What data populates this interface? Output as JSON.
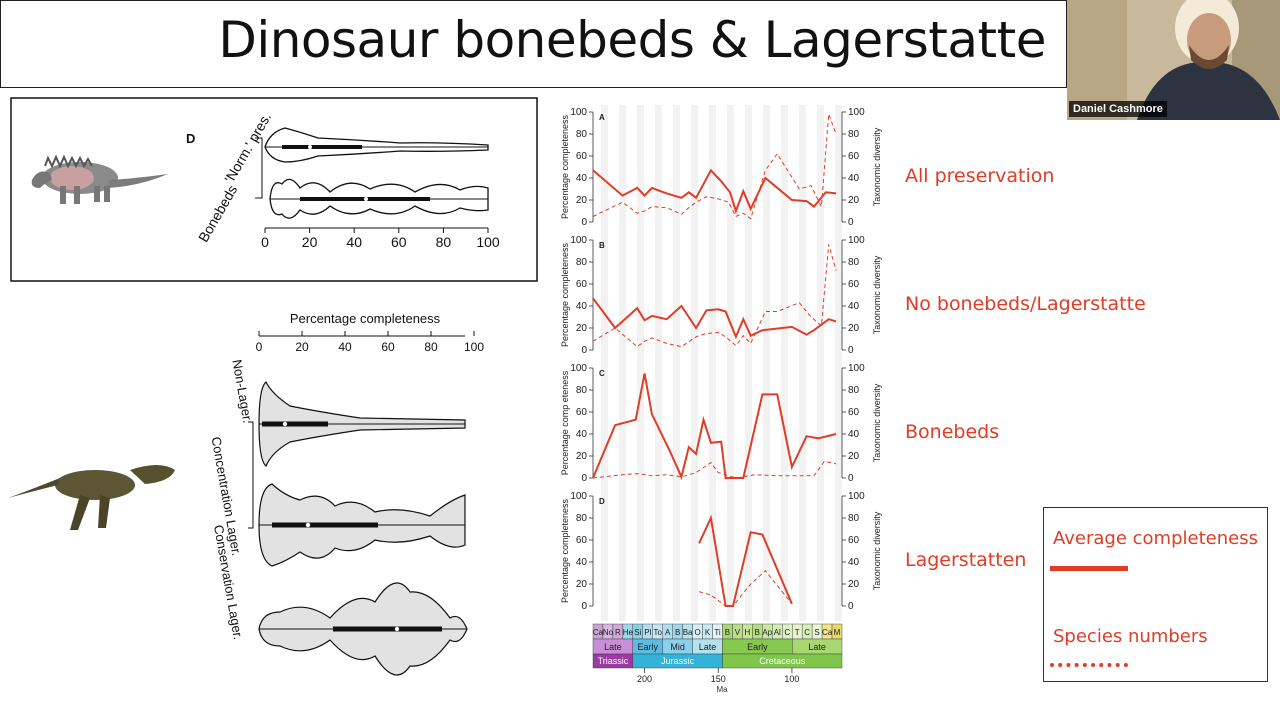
{
  "slide": {
    "title": "Dinosaur bonebeds & Lagerstatte",
    "presenter_name": "Daniel Cashmore"
  },
  "panel_d_inset": {
    "panel_letter": "D",
    "rows": [
      "'Norm.' pres.",
      "Bonebeds"
    ],
    "x_ticks": [
      "0",
      "20",
      "40",
      "60",
      "80",
      "100"
    ]
  },
  "violin_plot": {
    "axis_title": "Percentage completeness",
    "x_ticks": [
      "0",
      "20",
      "40",
      "60",
      "80",
      "100"
    ],
    "rows": [
      "Non-Lager.",
      "Concentration Lager.",
      "Conservation Lager."
    ]
  },
  "timeseries": {
    "left_axis_label": "Percentage completeness",
    "left_axis_label_c": "Percentage comp eteness",
    "right_axis_label": "Taxonomic diversity",
    "y_ticks": [
      "0",
      "20",
      "40",
      "60",
      "80",
      "100"
    ],
    "x_axis_label": "Ma",
    "x_ticks": [
      "200",
      "150",
      "100"
    ],
    "panel_letters": [
      "A",
      "B",
      "C",
      "D"
    ]
  },
  "timescale": {
    "stages": [
      "Ca",
      "No",
      "R",
      "He",
      "Si",
      "Pl",
      "To",
      "A",
      "B",
      "Ba",
      "O",
      "K",
      "Ti",
      "B",
      "V",
      "H",
      "B",
      "Ap",
      "Al",
      "C",
      "T",
      "C",
      "S",
      "Ca",
      "M"
    ],
    "epochs": [
      "Late",
      "Early",
      "Mid",
      "Late",
      "Early",
      "Late"
    ],
    "periods": [
      "Triassic",
      "Jurassic",
      "Cretaceous"
    ]
  },
  "panel_labels": [
    "All preservation",
    "No bonebeds/Lagerstatte",
    "Bonebeds",
    "Lagerstatten"
  ],
  "legend": {
    "solid_label": "Average completeness",
    "dashed_label": "Species numbers",
    "color": "#e03c26"
  },
  "chart_data": [
    {
      "type": "line",
      "panel": "A",
      "x_unit": "Ma",
      "xlim": [
        235,
        66
      ],
      "ylim": [
        0,
        100
      ],
      "series": [
        {
          "x": [
            235,
            215,
            205,
            200,
            195,
            185,
            175,
            170,
            165,
            155,
            148,
            142,
            138,
            133,
            128,
            118,
            100,
            90,
            85,
            77,
            70
          ],
          "values": [
            47,
            24,
            31,
            24,
            31,
            26,
            22,
            27,
            22,
            47,
            37,
            27,
            10,
            28,
            12,
            40,
            20,
            19,
            14,
            27,
            26
          ]
        },
        {
          "x": [
            235,
            215,
            205,
            200,
            195,
            185,
            175,
            170,
            165,
            158,
            150,
            143,
            138,
            133,
            128,
            118,
            110,
            95,
            87,
            80,
            75,
            70
          ],
          "values": [
            5,
            18,
            8,
            10,
            14,
            13,
            7,
            13,
            18,
            23,
            21,
            18,
            5,
            8,
            3,
            47,
            62,
            30,
            33,
            14,
            98,
            80
          ]
        }
      ]
    },
    {
      "type": "line",
      "panel": "B",
      "x_unit": "Ma",
      "xlim": [
        235,
        66
      ],
      "ylim": [
        0,
        100
      ],
      "series": [
        {
          "x": [
            235,
            220,
            205,
            200,
            195,
            185,
            175,
            165,
            158,
            150,
            145,
            138,
            133,
            128,
            120,
            100,
            90,
            85,
            75,
            70
          ],
          "values": [
            47,
            20,
            38,
            27,
            31,
            28,
            40,
            20,
            36,
            37,
            35,
            12,
            28,
            13,
            18,
            21,
            14,
            18,
            28,
            26
          ]
        },
        {
          "x": [
            235,
            220,
            205,
            200,
            195,
            185,
            175,
            165,
            158,
            150,
            145,
            138,
            133,
            128,
            118,
            110,
            95,
            87,
            80,
            75,
            70
          ],
          "values": [
            8,
            20,
            3,
            8,
            11,
            6,
            3,
            12,
            15,
            16,
            12,
            4,
            13,
            6,
            35,
            35,
            43,
            30,
            22,
            96,
            72
          ]
        }
      ]
    },
    {
      "type": "line",
      "panel": "C",
      "x_unit": "Ma",
      "xlim": [
        235,
        66
      ],
      "ylim": [
        0,
        100
      ],
      "series": [
        {
          "x": [
            235,
            220,
            206,
            200,
            195,
            183,
            175,
            170,
            165,
            160,
            155,
            148,
            145,
            138,
            133,
            120,
            110,
            100,
            90,
            82,
            70
          ],
          "values": [
            0,
            48,
            53,
            95,
            58,
            25,
            1,
            28,
            22,
            53,
            32,
            33,
            0,
            0,
            0,
            76,
            76,
            10,
            38,
            36,
            40
          ]
        },
        {
          "x": [
            235,
            215,
            205,
            195,
            185,
            175,
            165,
            155,
            150,
            145,
            138,
            125,
            110,
            95,
            85,
            78,
            70
          ],
          "values": [
            0,
            3,
            4,
            2,
            3,
            1,
            5,
            14,
            5,
            3,
            0,
            3,
            2,
            2,
            2,
            15,
            13
          ]
        }
      ]
    },
    {
      "type": "line",
      "panel": "D",
      "x_unit": "Ma",
      "xlim": [
        235,
        66
      ],
      "ylim": [
        0,
        100
      ],
      "series": [
        {
          "x": [
            163,
            155,
            145,
            140,
            128,
            120,
            100
          ],
          "values": [
            57,
            80,
            0,
            0,
            67,
            65,
            2
          ]
        },
        {
          "x": [
            163,
            155,
            145,
            140,
            128,
            118,
            100
          ],
          "values": [
            13,
            10,
            0,
            0,
            20,
            32,
            2
          ]
        }
      ]
    }
  ]
}
